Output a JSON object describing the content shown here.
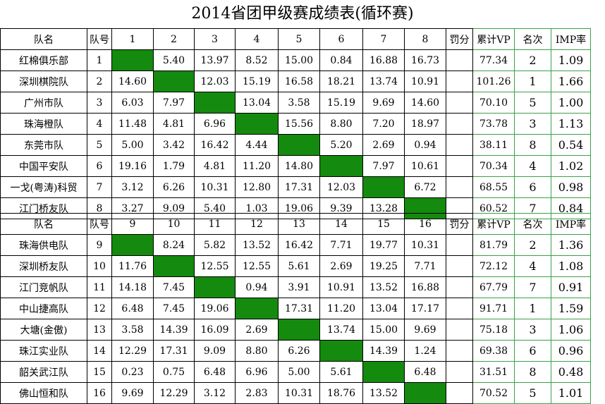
{
  "title": "2014省团甲级赛成绩表(循环赛)",
  "colors": {
    "diagonal": "#148a0e",
    "grid_line": "#000000",
    "right_block_line": "#3aa04a"
  },
  "groups": [
    {
      "header": {
        "team": "队名",
        "no": "队号",
        "cols": [
          "1",
          "2",
          "3",
          "4",
          "5",
          "6",
          "7",
          "8"
        ],
        "penalty": "罚分",
        "vp": "累计VP",
        "rank": "名次",
        "imp": "IMP率"
      },
      "rows": [
        {
          "team": "红棉俱乐部",
          "no": "1",
          "scores": [
            "",
            "5.40",
            "13.97",
            "8.52",
            "15.00",
            "0.84",
            "16.88",
            "16.73"
          ],
          "penalty": "",
          "vp": "77.34",
          "rank": "2",
          "imp": "1.09"
        },
        {
          "team": "深圳棋院队",
          "no": "2",
          "scores": [
            "14.60",
            "",
            "12.03",
            "15.19",
            "16.58",
            "18.21",
            "13.74",
            "10.91"
          ],
          "penalty": "",
          "vp": "101.26",
          "rank": "1",
          "imp": "1.66"
        },
        {
          "team": "广州市队",
          "no": "3",
          "scores": [
            "6.03",
            "7.97",
            "",
            "13.04",
            "3.58",
            "15.19",
            "9.69",
            "14.60"
          ],
          "penalty": "",
          "vp": "70.10",
          "rank": "5",
          "imp": "1.00"
        },
        {
          "team": "珠海橙队",
          "no": "4",
          "scores": [
            "11.48",
            "4.81",
            "6.96",
            "",
            "15.56",
            "8.80",
            "7.20",
            "18.97"
          ],
          "penalty": "",
          "vp": "73.78",
          "rank": "3",
          "imp": "1.13"
        },
        {
          "team": "东莞市队",
          "no": "5",
          "scores": [
            "5.00",
            "3.42",
            "16.42",
            "4.44",
            "",
            "5.20",
            "2.69",
            "0.94"
          ],
          "penalty": "",
          "vp": "38.11",
          "rank": "8",
          "imp": "0.54"
        },
        {
          "team": "中国平安队",
          "no": "6",
          "scores": [
            "19.16",
            "1.79",
            "4.81",
            "11.20",
            "14.80",
            "",
            "7.97",
            "10.61"
          ],
          "penalty": "",
          "vp": "70.34",
          "rank": "4",
          "imp": "1.02"
        },
        {
          "team": "一戈(粤涛)科贸",
          "no": "7",
          "scores": [
            "3.12",
            "6.26",
            "10.31",
            "12.80",
            "17.31",
            "12.03",
            "",
            "6.72"
          ],
          "penalty": "",
          "vp": "68.55",
          "rank": "6",
          "imp": "0.98"
        },
        {
          "team": "江门桥友队",
          "no": "8",
          "scores": [
            "3.27",
            "9.09",
            "5.40",
            "1.03",
            "19.06",
            "9.39",
            "13.28",
            ""
          ],
          "penalty": "",
          "vp": "60.52",
          "rank": "7",
          "imp": "0.84"
        }
      ]
    },
    {
      "header": {
        "team": "队名",
        "no": "队号",
        "cols": [
          "9",
          "10",
          "11",
          "12",
          "13",
          "14",
          "15",
          "16"
        ],
        "penalty": "罚分",
        "vp": "累计VP",
        "rank": "名次",
        "imp": "IMP率"
      },
      "rows": [
        {
          "team": "珠海供电队",
          "no": "9",
          "scores": [
            "",
            "8.24",
            "5.82",
            "13.52",
            "16.42",
            "7.71",
            "19.77",
            "10.31"
          ],
          "penalty": "",
          "vp": "81.79",
          "rank": "2",
          "imp": "1.36"
        },
        {
          "team": "深圳桥友队",
          "no": "10",
          "scores": [
            "11.76",
            "",
            "12.55",
            "12.55",
            "5.61",
            "2.69",
            "19.25",
            "7.71"
          ],
          "penalty": "",
          "vp": "72.12",
          "rank": "4",
          "imp": "1.08"
        },
        {
          "team": "江门竞帆队",
          "no": "11",
          "scores": [
            "14.18",
            "7.45",
            "",
            "0.94",
            "3.91",
            "10.91",
            "13.52",
            "16.88"
          ],
          "penalty": "",
          "vp": "67.79",
          "rank": "7",
          "imp": "0.91"
        },
        {
          "team": "中山捷高队",
          "no": "12",
          "scores": [
            "6.48",
            "7.45",
            "19.06",
            "",
            "17.31",
            "11.20",
            "13.04",
            "17.17"
          ],
          "penalty": "",
          "vp": "91.71",
          "rank": "1",
          "imp": "1.59"
        },
        {
          "team": "大塘(金傲)",
          "no": "13",
          "scores": [
            "3.58",
            "14.39",
            "16.09",
            "2.69",
            "",
            "13.74",
            "15.00",
            "9.69"
          ],
          "penalty": "",
          "vp": "75.18",
          "rank": "3",
          "imp": "1.06"
        },
        {
          "team": "珠江实业队",
          "no": "14",
          "scores": [
            "12.29",
            "17.31",
            "9.09",
            "8.80",
            "6.26",
            "",
            "14.39",
            "1.24"
          ],
          "penalty": "",
          "vp": "69.38",
          "rank": "6",
          "imp": "0.96"
        },
        {
          "team": "韶关武江队",
          "no": "15",
          "scores": [
            "0.23",
            "0.75",
            "6.48",
            "6.96",
            "5.00",
            "5.61",
            "",
            "6.48"
          ],
          "penalty": "",
          "vp": "31.51",
          "rank": "8",
          "imp": "0.48"
        },
        {
          "team": "佛山恒和队",
          "no": "16",
          "scores": [
            "9.69",
            "12.29",
            "3.12",
            "2.83",
            "10.31",
            "18.76",
            "13.52",
            ""
          ],
          "penalty": "",
          "vp": "70.52",
          "rank": "5",
          "imp": "1.01"
        }
      ]
    }
  ]
}
